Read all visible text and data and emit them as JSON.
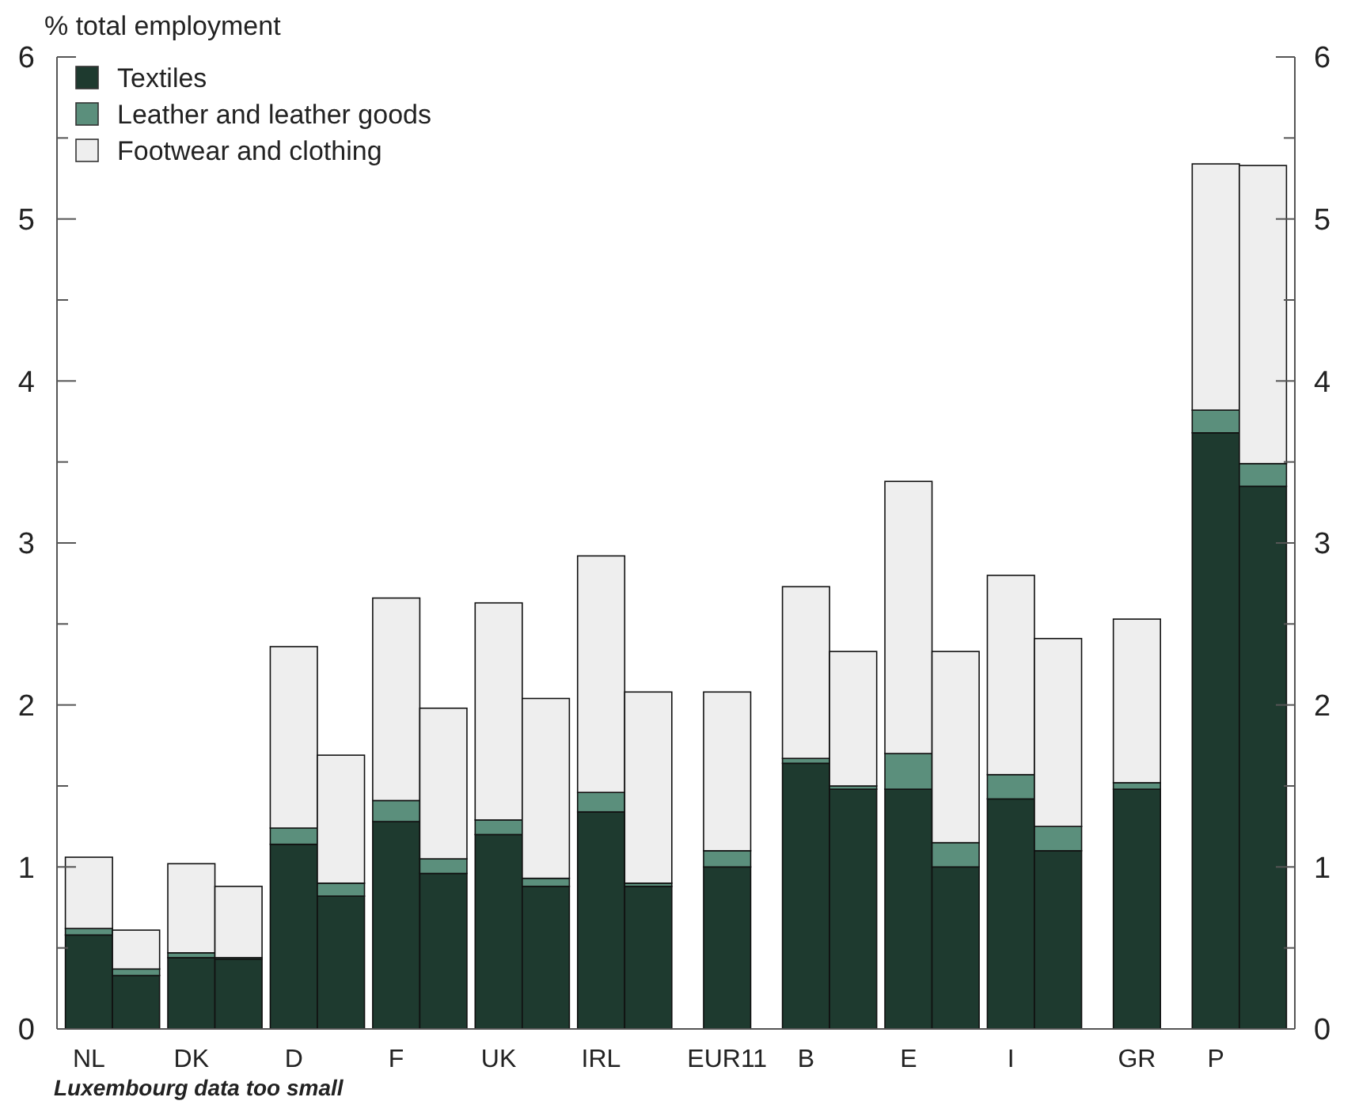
{
  "chart_data": {
    "type": "bar",
    "stacked": true,
    "ylabel": "% total employment",
    "categories": [
      "NL",
      null,
      "DK",
      null,
      "D",
      null,
      "F",
      null,
      "UK",
      null,
      "IRL",
      null,
      "EUR11",
      "B",
      null,
      "E",
      null,
      "I",
      null,
      "GR",
      "P",
      null
    ],
    "series": [
      {
        "name": "Textiles",
        "color": "#1e3a2f",
        "values": [
          0.58,
          0.33,
          0.44,
          0.43,
          1.14,
          0.82,
          1.28,
          0.96,
          1.2,
          0.88,
          1.34,
          0.88,
          1.0,
          1.64,
          1.48,
          1.48,
          1.0,
          1.42,
          1.1,
          1.48,
          3.68,
          3.35
        ]
      },
      {
        "name": "Leather and leather goods",
        "color": "#5b8f7c",
        "values": [
          0.04,
          0.04,
          0.03,
          0.01,
          0.1,
          0.08,
          0.13,
          0.09,
          0.09,
          0.05,
          0.12,
          0.02,
          0.1,
          0.03,
          0.02,
          0.22,
          0.15,
          0.15,
          0.15,
          0.04,
          0.14,
          0.14
        ]
      },
      {
        "name": "Footwear and clothing",
        "color": "#eeeeee",
        "values": [
          0.44,
          0.24,
          0.55,
          0.44,
          1.12,
          0.79,
          1.25,
          0.93,
          1.34,
          1.11,
          1.46,
          1.18,
          0.98,
          1.06,
          0.83,
          1.68,
          1.18,
          1.23,
          1.16,
          1.01,
          1.52,
          1.84
        ]
      }
    ],
    "ylim": [
      0,
      6
    ],
    "yticks": [
      0,
      {
        "value": 0.5,
        "label": null
      },
      1,
      {
        "value": 1.5,
        "label": null
      },
      2,
      {
        "value": 2.5,
        "label": null
      },
      3,
      {
        "value": 3.5,
        "label": null
      },
      4,
      {
        "value": 4.5,
        "label": null
      },
      5,
      {
        "value": 5.5,
        "label": null
      },
      6
    ],
    "y2lim": [
      0,
      6
    ],
    "y2ticks": [
      0,
      {
        "value": 0.5,
        "label": null
      },
      1,
      {
        "value": 1.5,
        "label": null
      },
      2,
      {
        "value": 2.5,
        "label": null
      },
      3,
      {
        "value": 3.5,
        "label": null
      },
      4,
      {
        "value": 4.5,
        "label": null
      },
      5,
      {
        "value": 5.5,
        "label": null
      },
      6
    ],
    "grid": false,
    "legend": "top left",
    "annotations": [
      "Luxembourg data too small"
    ]
  }
}
